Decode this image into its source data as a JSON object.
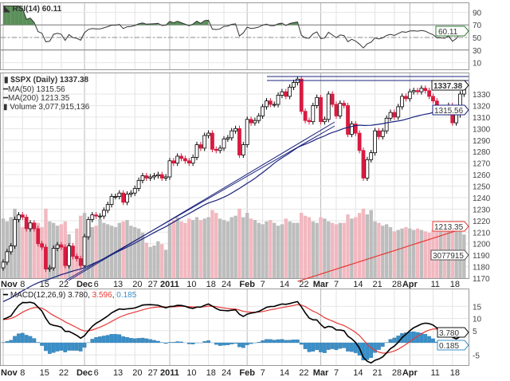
{
  "rsi_panel": {
    "label": "RSI(14) 60.11",
    "value_tag": "60.11",
    "ticks": [
      "90",
      "70",
      "50",
      "30",
      "10"
    ],
    "color": "#2e7d32"
  },
  "price_panel": {
    "symbol_label": "$SPX (Daily) 1337.38",
    "ma50_label": "MA(50) 1315.56",
    "ma200_label": "MA(200) 1213.35",
    "volume_label": "Volume 3,077,915,136",
    "last_tag": "1337.38",
    "ma50_tag": "1315.56",
    "ma200_tag": "1213.35",
    "volume_tag": "3077915",
    "ticks": [
      "1330",
      "1320",
      "1310",
      "1300",
      "1290",
      "1280",
      "1270",
      "1260",
      "1250",
      "1240",
      "1230",
      "1220",
      "1210",
      "1200",
      "1190",
      "1180",
      "1170"
    ],
    "ma50_color": "#1a237e",
    "ma200_color": "#e53935",
    "down_color": "#d81b40"
  },
  "macd_panel": {
    "label_prefix": "MACD(12,26,9)",
    "macd": "3.780",
    "signal": "3.596",
    "hist": "0.185",
    "ticks": [
      "15",
      "10",
      "5",
      "-5"
    ],
    "hist_color": "#3a8fc8",
    "signal_color": "#e53935"
  },
  "x_axis": [
    {
      "label": "Nov",
      "i": 0,
      "bold": true
    },
    {
      "label": "8",
      "i": 5
    },
    {
      "label": "15",
      "i": 10
    },
    {
      "label": "22",
      "i": 15
    },
    {
      "label": "Dec",
      "i": 21,
      "bold": true
    },
    {
      "label": "6",
      "i": 24
    },
    {
      "label": "13",
      "i": 29
    },
    {
      "label": "20",
      "i": 34
    },
    {
      "label": "27",
      "i": 38
    },
    {
      "label": "2011",
      "i": 43,
      "bold": true
    },
    {
      "label": "10",
      "i": 48
    },
    {
      "label": "18",
      "i": 53
    },
    {
      "label": "24",
      "i": 57
    },
    {
      "label": "Feb",
      "i": 63,
      "bold": true
    },
    {
      "label": "7",
      "i": 67
    },
    {
      "label": "14",
      "i": 72
    },
    {
      "label": "22",
      "i": 77
    },
    {
      "label": "Mar",
      "i": 82,
      "bold": true
    },
    {
      "label": "7",
      "i": 86
    },
    {
      "label": "14",
      "i": 91
    },
    {
      "label": "21",
      "i": 96
    },
    {
      "label": "28",
      "i": 101
    },
    {
      "label": "Apr",
      "i": 105,
      "bold": true
    },
    {
      "label": "11",
      "i": 111
    },
    {
      "label": "18",
      "i": 116
    }
  ],
  "chart_data": {
    "type": "candlestick",
    "title": "$SPX (Daily)",
    "ylim": [
      1165,
      1345
    ],
    "close": [
      1184,
      1193,
      1198,
      1221,
      1225,
      1223,
      1213,
      1218,
      1213,
      1200,
      1197,
      1178,
      1179,
      1196,
      1199,
      1197,
      1181,
      1198,
      1189,
      1187,
      1181,
      1206,
      1221,
      1225,
      1224,
      1224,
      1229,
      1234,
      1241,
      1241,
      1244,
      1236,
      1243,
      1244,
      1248,
      1255,
      1259,
      1257,
      1258,
      1259,
      1260,
      1257,
      1258,
      1272,
      1270,
      1276,
      1274,
      1272,
      1270,
      1275,
      1286,
      1283,
      1294,
      1296,
      1282,
      1281,
      1283,
      1291,
      1292,
      1298,
      1300,
      1277,
      1286,
      1308,
      1305,
      1307,
      1311,
      1319,
      1324,
      1321,
      1321,
      1329,
      1332,
      1328,
      1336,
      1340,
      1343,
      1315,
      1307,
      1306,
      1320,
      1327,
      1306,
      1308,
      1330,
      1321,
      1311,
      1322,
      1320,
      1295,
      1304,
      1296,
      1281,
      1257,
      1273,
      1279,
      1298,
      1293,
      1298,
      1309,
      1314,
      1310,
      1319,
      1328,
      1326,
      1332,
      1333,
      1332,
      1335,
      1333,
      1328,
      1324,
      1315,
      1315,
      1314,
      1320,
      1305,
      1312,
      1330,
      1337.38
    ],
    "volume_billions": [
      4.2,
      4.0,
      4.3,
      4.9,
      4.1,
      3.6,
      3.9,
      3.8,
      3.5,
      3.9,
      3.6,
      4.9,
      4.0,
      3.9,
      3.7,
      3.8,
      4.0,
      3.1,
      2.0,
      3.5,
      4.4,
      4.6,
      4.1,
      3.6,
      3.7,
      4.2,
      3.9,
      3.8,
      3.7,
      3.6,
      3.9,
      4.0,
      4.1,
      3.7,
      3.6,
      3.5,
      3.2,
      2.5,
      2.2,
      2.3,
      2.6,
      2.4,
      2.0,
      3.9,
      4.1,
      4.3,
      4.0,
      3.9,
      4.2,
      4.1,
      4.3,
      4.1,
      4.2,
      4.3,
      4.8,
      4.6,
      4.2,
      4.1,
      4.0,
      4.3,
      4.4,
      4.9,
      4.3,
      4.6,
      4.2,
      4.1,
      3.9,
      3.8,
      4.0,
      4.1,
      3.9,
      3.7,
      3.8,
      4.2,
      4.0,
      3.9,
      3.9,
      4.6,
      4.4,
      4.3,
      4.0,
      3.9,
      4.3,
      4.2,
      4.0,
      3.9,
      3.8,
      3.9,
      3.9,
      4.5,
      4.2,
      4.3,
      4.6,
      4.9,
      4.5,
      4.8,
      4.0,
      3.9,
      3.7,
      3.8,
      3.6,
      3.3,
      3.4,
      3.5,
      3.6,
      3.5,
      3.4,
      3.5,
      3.4,
      3.3,
      3.2,
      3.4,
      3.5,
      3.6,
      3.3,
      3.5,
      3.7,
      3.4,
      3.6,
      3.08
    ],
    "ma200_range": [
      1150,
      1213.35
    ],
    "rsi_ylim": [
      0,
      100
    ],
    "macd_ylim": [
      -9,
      19
    ]
  }
}
